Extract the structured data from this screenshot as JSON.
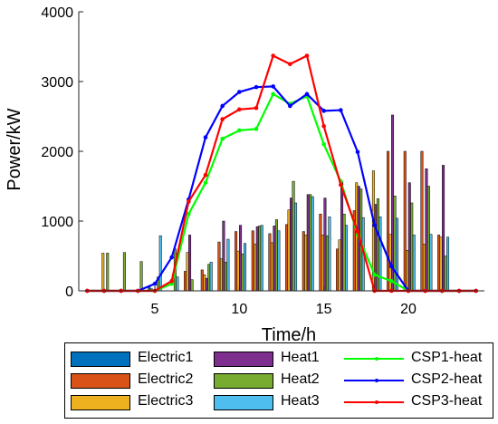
{
  "chart_data": {
    "type": "bar+line",
    "xlabel": "Time/h",
    "ylabel": "Power/kW",
    "xlim": [
      0.5,
      24.5
    ],
    "ylim": [
      0,
      4000
    ],
    "xticks": [
      5,
      10,
      15,
      20
    ],
    "yticks": [
      0,
      1000,
      2000,
      3000,
      4000
    ],
    "grid": false,
    "legend_placement": "bottom",
    "bar_series": [
      {
        "name": "Electric1",
        "color": "#0072BD",
        "values": [
          0,
          0,
          0,
          0,
          60,
          0,
          0,
          0,
          0,
          0,
          0,
          0,
          0,
          0,
          0,
          0,
          0,
          0,
          0,
          0,
          0,
          0,
          0,
          0
        ]
      },
      {
        "name": "Electric2",
        "color": "#D95319",
        "values": [
          0,
          0,
          0,
          0,
          30,
          0,
          280,
          300,
          700,
          850,
          860,
          820,
          950,
          850,
          1100,
          600,
          1150,
          0,
          2000,
          2000,
          2000,
          800,
          0,
          0
        ]
      },
      {
        "name": "Electric3",
        "color": "#EDB120",
        "values": [
          0,
          540,
          0,
          0,
          0,
          0,
          550,
          230,
          460,
          570,
          670,
          690,
          1160,
          800,
          800,
          730,
          1550,
          1720,
          810,
          580,
          670,
          770,
          0,
          0
        ]
      },
      {
        "name": "Heat1",
        "color": "#7E2F8E",
        "values": [
          0,
          0,
          0,
          0,
          0,
          0,
          800,
          180,
          1000,
          940,
          920,
          930,
          1330,
          1380,
          1330,
          1560,
          1500,
          1240,
          2520,
          1550,
          1750,
          1800,
          0,
          0
        ]
      },
      {
        "name": "Heat2",
        "color": "#77AC30",
        "values": [
          0,
          540,
          550,
          420,
          200,
          600,
          160,
          380,
          410,
          530,
          930,
          1020,
          1570,
          1380,
          790,
          1100,
          1460,
          1320,
          1360,
          1260,
          1500,
          500,
          0,
          0
        ]
      },
      {
        "name": "Heat3",
        "color": "#4DBEEE",
        "values": [
          0,
          0,
          0,
          0,
          790,
          200,
          0,
          410,
          740,
          680,
          940,
          860,
          1260,
          1350,
          1060,
          940,
          1050,
          1060,
          1040,
          800,
          810,
          770,
          0,
          0
        ]
      }
    ],
    "line_series": [
      {
        "name": "CSP1-heat",
        "color": "#00FF00",
        "x": [
          1,
          2,
          3,
          4,
          5,
          6,
          7,
          8,
          9,
          10,
          11,
          12,
          13,
          14,
          15,
          16,
          17,
          18,
          19,
          20,
          21,
          22,
          23,
          24
        ],
        "values": [
          0,
          0,
          0,
          0,
          0,
          100,
          1100,
          1550,
          2180,
          2300,
          2320,
          2820,
          2680,
          2790,
          2100,
          1570,
          810,
          230,
          140,
          0,
          0,
          0,
          0,
          0
        ]
      },
      {
        "name": "CSP2-heat",
        "color": "#0000FF",
        "x": [
          1,
          2,
          3,
          4,
          5,
          6,
          7,
          8,
          9,
          10,
          11,
          12,
          13,
          14,
          15,
          16,
          17,
          18,
          19,
          20,
          21,
          22,
          23,
          24
        ],
        "values": [
          0,
          0,
          0,
          0,
          100,
          480,
          1310,
          2200,
          2650,
          2850,
          2920,
          2930,
          2650,
          2820,
          2580,
          2590,
          1990,
          940,
          350,
          0,
          0,
          0,
          0,
          0
        ]
      },
      {
        "name": "CSP3-heat",
        "color": "#FF0000",
        "x": [
          1,
          2,
          3,
          4,
          5,
          6,
          7,
          8,
          9,
          10,
          11,
          12,
          13,
          14,
          15,
          16,
          17,
          18,
          19,
          20,
          21,
          22,
          23,
          24
        ],
        "values": [
          0,
          0,
          0,
          0,
          0,
          140,
          1280,
          1660,
          2460,
          2600,
          2620,
          3370,
          3250,
          3370,
          2360,
          1520,
          850,
          0,
          0,
          0,
          0,
          0,
          0,
          0
        ]
      }
    ]
  }
}
